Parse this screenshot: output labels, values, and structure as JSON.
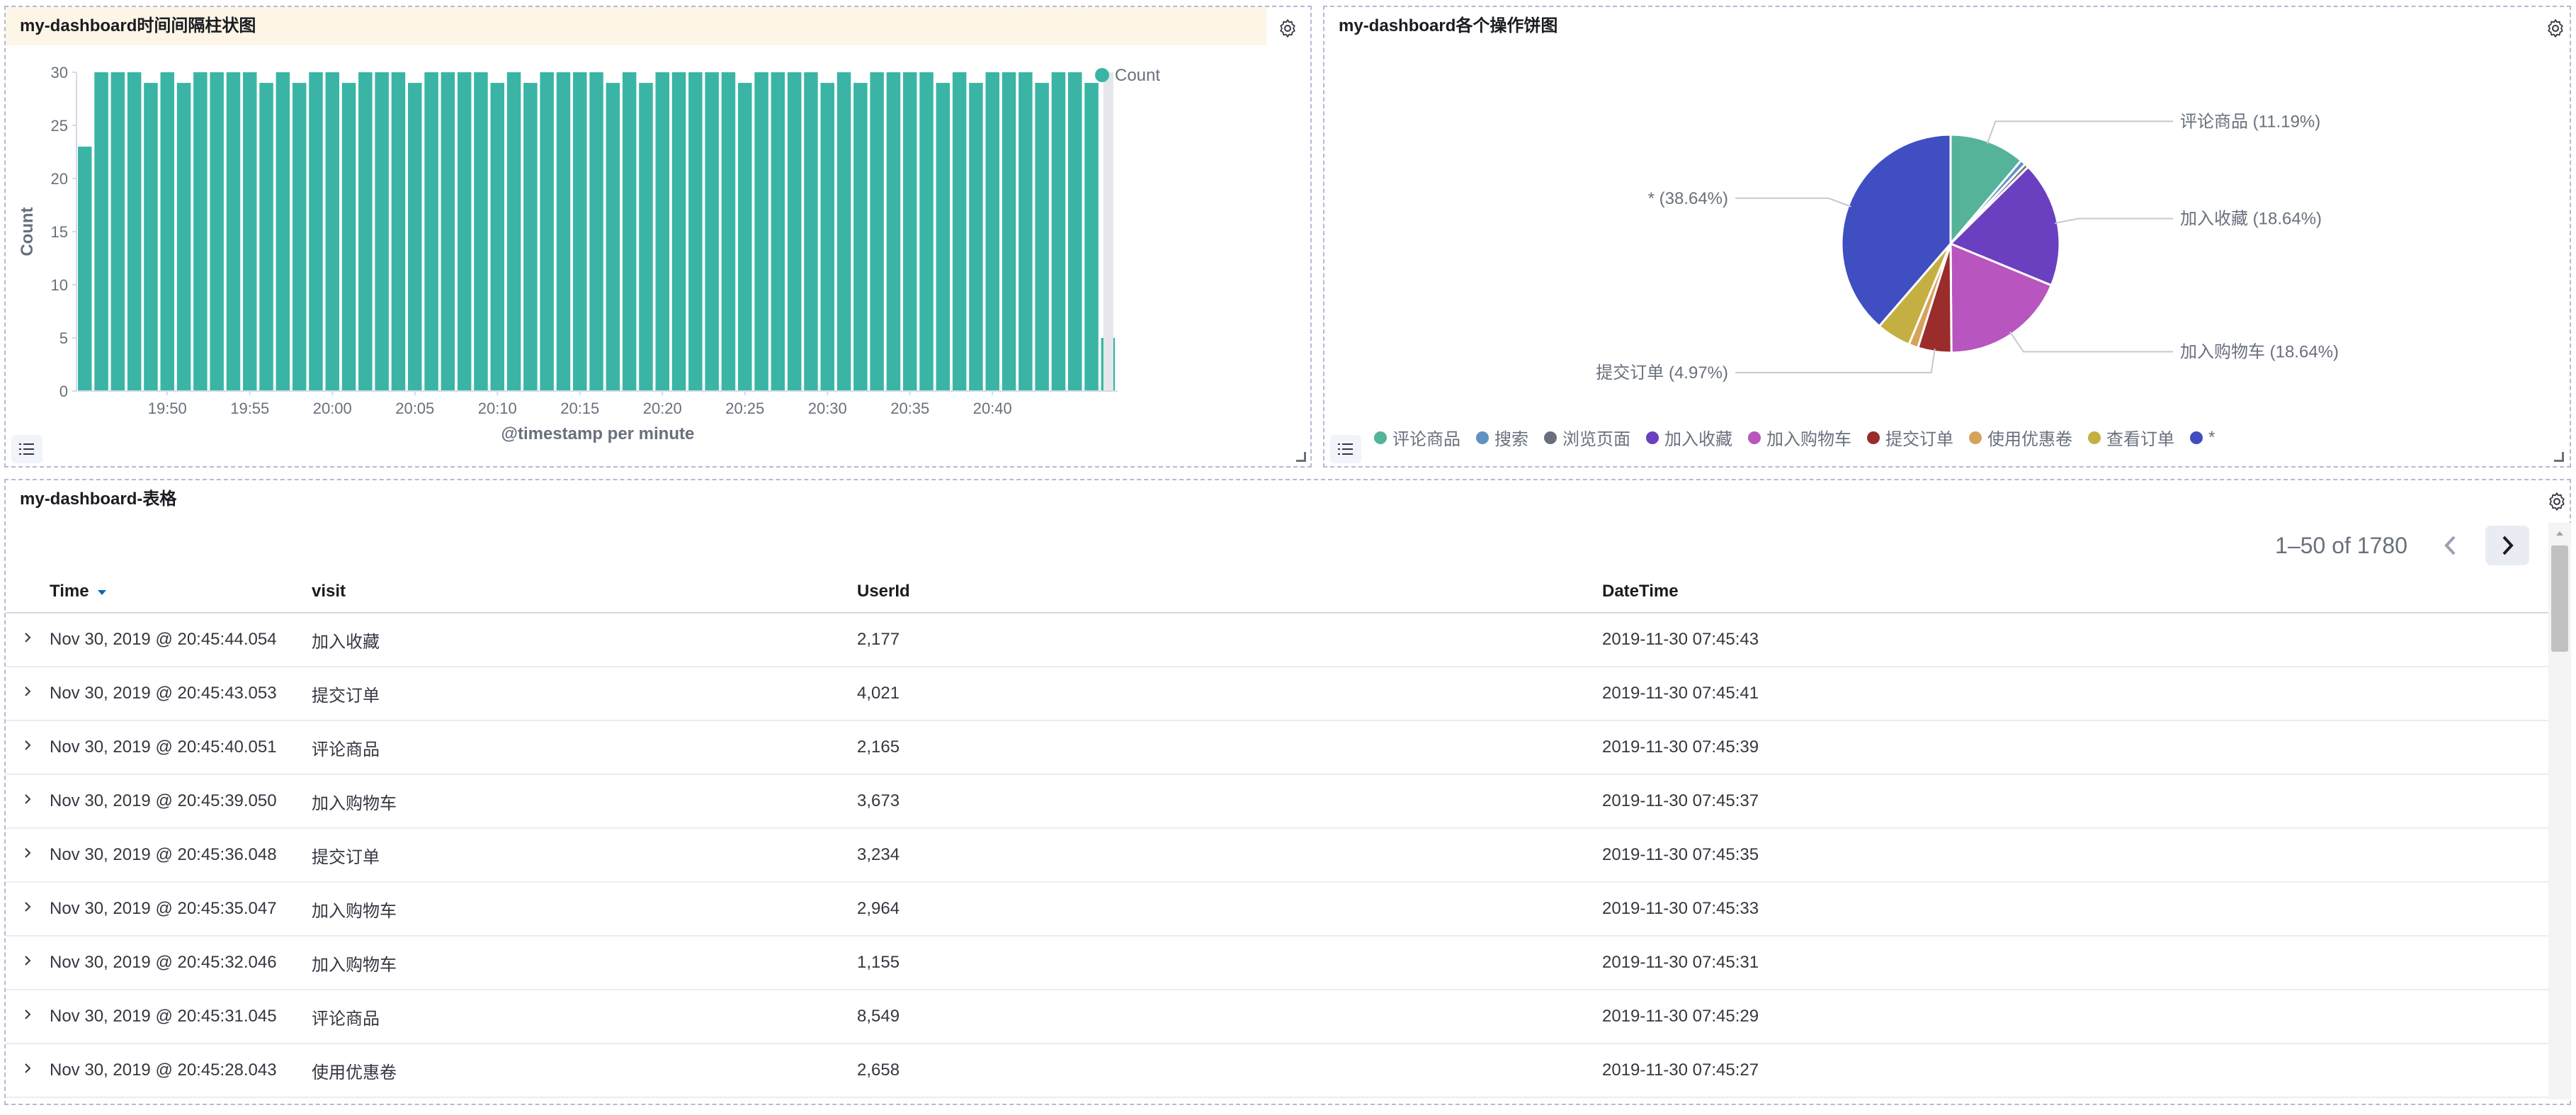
{
  "bar_panel": {
    "title": "my-dashboard时间间隔柱状图",
    "legend_label": "Count"
  },
  "pie_panel": {
    "title": "my-dashboard各个操作饼图"
  },
  "table_panel": {
    "title": "my-dashboard-表格",
    "pagination": "1–50 of 1780",
    "columns": [
      "Time",
      "visit",
      "UserId",
      "DateTime"
    ],
    "rows": [
      {
        "time": "Nov 30, 2019 @ 20:45:44.054",
        "visit": "加入收藏",
        "userid": "2,177",
        "datetime": "2019-11-30 07:45:43"
      },
      {
        "time": "Nov 30, 2019 @ 20:45:43.053",
        "visit": "提交订单",
        "userid": "4,021",
        "datetime": "2019-11-30 07:45:41"
      },
      {
        "time": "Nov 30, 2019 @ 20:45:40.051",
        "visit": "评论商品",
        "userid": "2,165",
        "datetime": "2019-11-30 07:45:39"
      },
      {
        "time": "Nov 30, 2019 @ 20:45:39.050",
        "visit": "加入购物车",
        "userid": "3,673",
        "datetime": "2019-11-30 07:45:37"
      },
      {
        "time": "Nov 30, 2019 @ 20:45:36.048",
        "visit": "提交订单",
        "userid": "3,234",
        "datetime": "2019-11-30 07:45:35"
      },
      {
        "time": "Nov 30, 2019 @ 20:45:35.047",
        "visit": "加入购物车",
        "userid": "2,964",
        "datetime": "2019-11-30 07:45:33"
      },
      {
        "time": "Nov 30, 2019 @ 20:45:32.046",
        "visit": "加入购物车",
        "userid": "1,155",
        "datetime": "2019-11-30 07:45:31"
      },
      {
        "time": "Nov 30, 2019 @ 20:45:31.045",
        "visit": "评论商品",
        "userid": "8,549",
        "datetime": "2019-11-30 07:45:29"
      },
      {
        "time": "Nov 30, 2019 @ 20:45:28.043",
        "visit": "使用优惠卷",
        "userid": "2,658",
        "datetime": "2019-11-30 07:45:27"
      }
    ]
  },
  "colors": {
    "bar": "#3ab5a5",
    "accent": "#006bb4"
  },
  "icons": {
    "settings": "gear-icon",
    "legend": "list-icon",
    "row_expand": "chevron-right-icon",
    "prev": "chevron-left-icon",
    "next": "chevron-right-icon",
    "sort": "sort-down-icon"
  },
  "chart_data": [
    {
      "type": "bar",
      "xlabel": "@timestamp per minute",
      "ylabel": "Count",
      "ylim": [
        0,
        30
      ],
      "yticks": [
        0,
        5,
        10,
        15,
        20,
        25,
        30
      ],
      "x_tick_labels": [
        "19:50",
        "19:55",
        "20:00",
        "20:05",
        "20:10",
        "20:15",
        "20:20",
        "20:25",
        "20:30",
        "20:35",
        "20:40"
      ],
      "x_tick_bar_index": [
        5,
        10,
        15,
        20,
        25,
        30,
        35,
        40,
        45,
        50,
        55
      ],
      "legend": [
        "Count"
      ],
      "legend_position": "top-right",
      "grid": false,
      "values": [
        23,
        30,
        30,
        30,
        29,
        30,
        29,
        30,
        30,
        30,
        30,
        29,
        30,
        29,
        30,
        30,
        29,
        30,
        30,
        30,
        29,
        30,
        30,
        30,
        30,
        29,
        30,
        29,
        30,
        30,
        30,
        30,
        29,
        30,
        29,
        30,
        30,
        30,
        30,
        30,
        29,
        30,
        30,
        30,
        30,
        29,
        30,
        29,
        30,
        30,
        30,
        30,
        29,
        30,
        29,
        30,
        30,
        30,
        29,
        30,
        30,
        29,
        5
      ]
    },
    {
      "type": "pie",
      "slices": [
        {
          "name": "评论商品",
          "value": 11.19,
          "color": "#54b399",
          "label": "评论商品 (11.19%)"
        },
        {
          "name": "搜索",
          "value": 0.8,
          "color": "#6092c0",
          "label": ""
        },
        {
          "name": "浏览页面",
          "value": 0.6,
          "color": "#69707d",
          "label": ""
        },
        {
          "name": "加入收藏",
          "value": 18.64,
          "color": "#6a3fc0",
          "label": "加入收藏 (18.64%)"
        },
        {
          "name": "加入购物车",
          "value": 18.64,
          "color": "#b855be",
          "label": "加入购物车 (18.64%)"
        },
        {
          "name": "提交订单",
          "value": 4.97,
          "color": "#9b2c2c",
          "label": "提交订单 (4.97%)"
        },
        {
          "name": "使用优惠卷",
          "value": 1.4,
          "color": "#d6a35c",
          "label": ""
        },
        {
          "name": "查看订单",
          "value": 5.1,
          "color": "#c4b042",
          "label": ""
        },
        {
          "name": "*",
          "value": 38.64,
          "color": "#3f4ec0",
          "label": "* (38.64%)"
        }
      ],
      "legend": [
        "评论商品",
        "搜索",
        "浏览页面",
        "加入收藏",
        "加入购物车",
        "提交订单",
        "使用优惠卷",
        "查看订单",
        "*"
      ],
      "legend_position": "bottom-left"
    }
  ]
}
